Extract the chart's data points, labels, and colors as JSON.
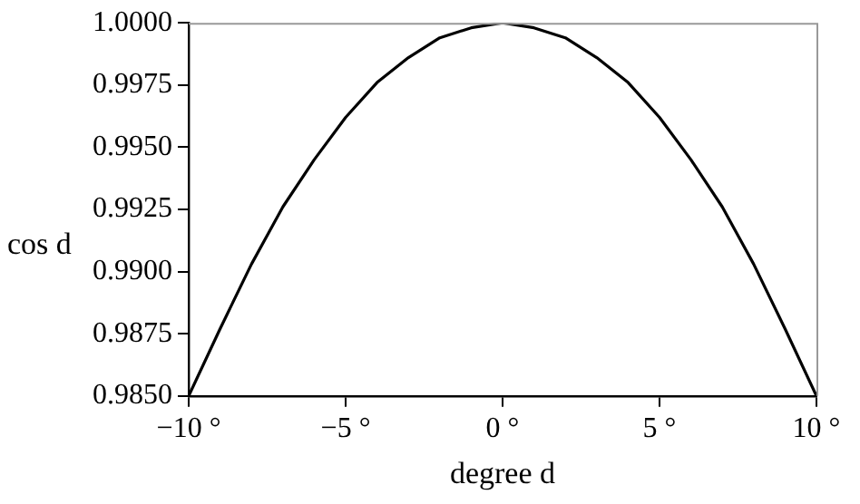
{
  "chart_data": {
    "type": "line",
    "xlabel": "degree d",
    "ylabel": "cos d",
    "x": [
      -10,
      -9,
      -8,
      -7,
      -6,
      -5,
      -4,
      -3,
      -2,
      -1,
      0,
      1,
      2,
      3,
      4,
      5,
      6,
      7,
      8,
      9,
      10
    ],
    "series": [
      {
        "color": "#000000",
        "values": [
          0.985,
          0.9877,
          0.9903,
          0.9926,
          0.9945,
          0.9962,
          0.9976,
          0.9986,
          0.9994,
          0.9998,
          1.0,
          0.9998,
          0.9994,
          0.9986,
          0.9976,
          0.9962,
          0.9945,
          0.9926,
          0.9903,
          0.9877,
          0.985
        ]
      }
    ],
    "xlim": [
      -10,
      10
    ],
    "ylim": [
      0.985,
      1.0
    ],
    "xticks": [
      {
        "value": -10,
        "label": "−10 °"
      },
      {
        "value": -5,
        "label": "−5 °"
      },
      {
        "value": 0,
        "label": "0 °"
      },
      {
        "value": 5,
        "label": "5 °"
      },
      {
        "value": 10,
        "label": "10 °"
      }
    ],
    "yticks": [
      {
        "value": 0.985,
        "label": "0.9850"
      },
      {
        "value": 0.9875,
        "label": "0.9875"
      },
      {
        "value": 0.99,
        "label": "0.9900"
      },
      {
        "value": 0.9925,
        "label": "0.9925"
      },
      {
        "value": 0.995,
        "label": "0.9950"
      },
      {
        "value": 0.9975,
        "label": "0.9975"
      },
      {
        "value": 1.0,
        "label": "1.0000"
      }
    ],
    "marker": "none",
    "line_style": "solid",
    "legend": false
  }
}
